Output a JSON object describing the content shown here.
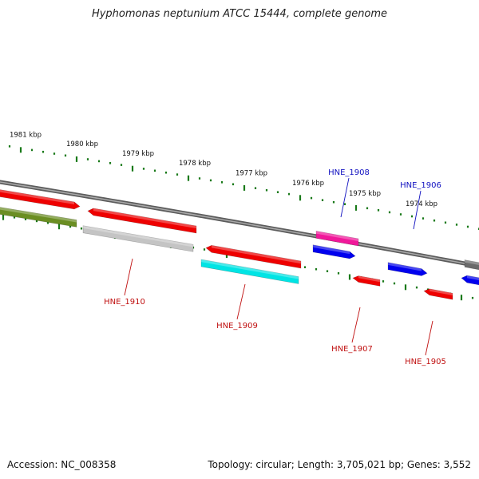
{
  "title": "Hyphomonas neptunium ATCC 15444, complete genome",
  "footer": {
    "accession": "Accession: NC_008358",
    "topology": "Topology: circular; Length: 3,705,021 bp; Genes: 3,552"
  },
  "colors": {
    "backbone": "#7a7a7a",
    "ruler": "#1a7a1a",
    "forward_label": "#1010c0",
    "reverse_label": "#c01010"
  },
  "ruler": {
    "labels": [
      "1981 kbp",
      "1980 kbp",
      "1979 kbp",
      "1978 kbp",
      "1977 kbp",
      "1976 kbp",
      "1975 kbp",
      "1974 kbp"
    ]
  },
  "genes": [
    {
      "name": "HNE_1910",
      "strand": "reverse",
      "color": "#c4c4c4"
    },
    {
      "name": "HNE_1909",
      "strand": "reverse",
      "color": "#00e4e4"
    },
    {
      "name": "HNE_1908",
      "strand": "forward",
      "color": "#f0189a"
    },
    {
      "name": "HNE_1907",
      "strand": "reverse",
      "color": "#ee0000"
    },
    {
      "name": "HNE_1906",
      "strand": "forward",
      "color": "#0000ee"
    },
    {
      "name": "HNE_1905",
      "strand": "reverse",
      "color": "#ee0000"
    }
  ]
}
